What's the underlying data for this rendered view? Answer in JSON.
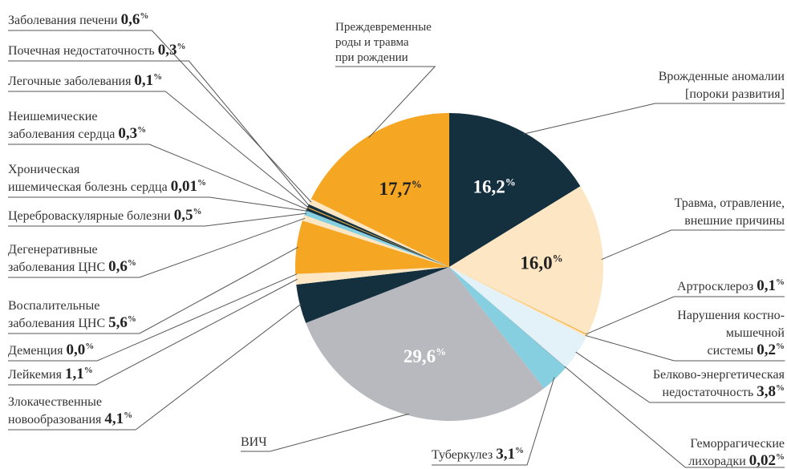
{
  "chart_data": {
    "type": "pie",
    "unit": "%",
    "categories": [
      [
        "Врожденные аномалии",
        "[пороки развития]"
      ],
      [
        "Травма, отравление,",
        "внешние причины"
      ],
      [
        "Артросклероз"
      ],
      [
        "Нарушения костно-",
        "мышечной",
        "системы"
      ],
      [
        "Белково-энергетическая",
        "недостаточность"
      ],
      [
        "Геморрагические",
        "лихорадки"
      ],
      [
        "Туберкулез"
      ],
      [
        "ВИЧ"
      ],
      [
        "Злокачественные",
        "новообразования"
      ],
      [
        "Лейкемия"
      ],
      [
        "Деменция"
      ],
      [
        "Воспалительные",
        "заболевания ЦНС"
      ],
      [
        "Дегенеративные",
        "заболевания ЦНС"
      ],
      [
        "Цереброваскулярные болезни"
      ],
      [
        "Хроническая",
        "ишемическая болезнь сердца"
      ],
      [
        "Неишемические",
        "заболевания сердца"
      ],
      [
        "Легочные заболевания"
      ],
      [
        "Почечная недостаточность"
      ],
      [
        "Заболевания печени"
      ],
      [
        "Преждевременные",
        "роды и травма",
        "при рождении"
      ]
    ],
    "values": [
      16.2,
      16.0,
      0.1,
      0.2,
      3.8,
      0.02,
      3.1,
      29.6,
      4.1,
      1.1,
      0.0,
      5.6,
      0.6,
      0.5,
      0.01,
      0.3,
      0.1,
      0.3,
      0.6,
      17.7
    ],
    "value_labels": [
      "16,2",
      "16,0",
      "0,1",
      "0,2",
      "3,8",
      "0,02",
      "3,1",
      "29,6",
      "4,1",
      "1,1",
      "0,0",
      "5,6",
      "0,6",
      "0,5",
      "0,01",
      "0,3",
      "0,1",
      "0,3",
      "0,6",
      "17,7"
    ],
    "colors": [
      "#14303f",
      "#fde6c3",
      "#f5a623",
      "#fde6c3",
      "#e3f2f8",
      "#14303f",
      "#85cfe0",
      "#b8b9be",
      "#14303f",
      "#fde6c3",
      "#14303f",
      "#f5a623",
      "#fde6c3",
      "#85cfe0",
      "#85cfe0",
      "#14303f",
      "#f5a623",
      "#14303f",
      "#fde6c3",
      "#f5a623"
    ]
  }
}
